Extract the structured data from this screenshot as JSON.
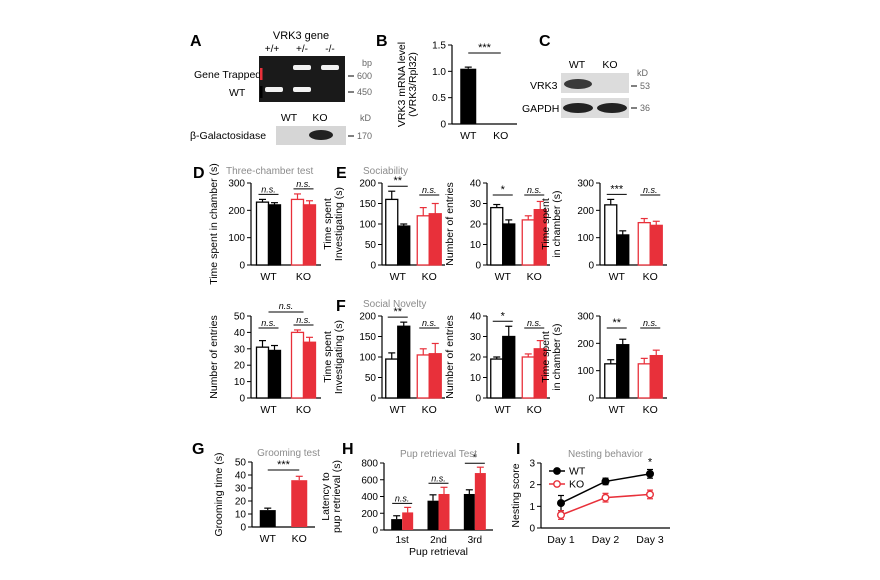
{
  "panels": {
    "A": {
      "letter": "A",
      "gene_title": "VRK3 gene",
      "genotypes": [
        "+/+",
        "+/-",
        "-/-"
      ],
      "bp_unit": "bp",
      "bp_markers": [
        "600",
        "450"
      ],
      "row_labels": [
        "Gene Trapped",
        "WT"
      ],
      "lower_lanes": [
        "WT",
        "KO"
      ],
      "lower_label": "β-Galactosidase",
      "kd_unit": "kD",
      "kd_marker": "170",
      "colors": {
        "trapped": "#e8303a",
        "wt": "#000000",
        "gel": "#1a1a1a",
        "band": "#f2f2f2"
      }
    },
    "B": {
      "letter": "B",
      "sig": "***"
    },
    "C": {
      "letter": "C",
      "lanes": [
        "WT",
        "KO"
      ],
      "rows": [
        "VRK3",
        "GAPDH"
      ],
      "kd_unit": "kD",
      "kd_markers": [
        "53",
        "36"
      ]
    },
    "D": {
      "letter": "D",
      "subtitle": "Three-chamber test"
    },
    "E": {
      "letter": "E",
      "subtitle": "Sociability"
    },
    "F": {
      "letter": "F",
      "subtitle": "Social Novelty"
    },
    "G": {
      "letter": "G"
    },
    "H": {
      "letter": "H"
    },
    "I": {
      "letter": "I"
    }
  },
  "colors": {
    "wt": "#000000",
    "ko": "#e8303a",
    "gray_text": "#8c8c8c"
  },
  "chart_data": [
    {
      "id": "B",
      "type": "bar",
      "title": "",
      "ylabel": [
        "VRK3 mRNA level",
        "(VRK3/Rpl32)"
      ],
      "xlabel": "",
      "categories": [
        "WT",
        "KO"
      ],
      "values": [
        1.05,
        0.0
      ],
      "errors": [
        0.03,
        0.0
      ],
      "ylim": [
        0,
        1.5
      ],
      "yticks": [
        0,
        0.5,
        1.0,
        1.5
      ],
      "ytick_labels": [
        "0",
        "0.5",
        "1.0",
        "1.5"
      ],
      "significance": "***"
    },
    {
      "id": "D1",
      "type": "bar",
      "title": "Three-chamber test",
      "ylabel": [
        "Time spent in chamber (s)"
      ],
      "groups": [
        "WT",
        "KO"
      ],
      "values": [
        [
          230,
          220
        ],
        [
          240,
          220
        ]
      ],
      "errors": [
        [
          10,
          8
        ],
        [
          20,
          15
        ]
      ],
      "ylim": [
        0,
        300
      ],
      "yticks": [
        0,
        100,
        200,
        300
      ],
      "significance": [
        "n.s.",
        "n.s."
      ]
    },
    {
      "id": "D2",
      "type": "bar",
      "title": "",
      "ylabel": [
        "Number of entries"
      ],
      "groups": [
        "WT",
        "KO"
      ],
      "values": [
        [
          31,
          29
        ],
        [
          40,
          34
        ]
      ],
      "errors": [
        [
          4,
          3
        ],
        [
          1.5,
          3
        ]
      ],
      "ylim": [
        0,
        50
      ],
      "yticks": [
        0,
        10,
        20,
        30,
        40,
        50
      ],
      "significance": [
        "n.s.",
        "n.s."
      ],
      "overall": "n.s."
    },
    {
      "id": "E1",
      "type": "bar",
      "title": "Sociability",
      "ylabel": [
        "Time spent",
        "Investigating (s)"
      ],
      "groups": [
        "WT",
        "KO"
      ],
      "values": [
        [
          160,
          95
        ],
        [
          120,
          125
        ]
      ],
      "errors": [
        [
          20,
          5
        ],
        [
          20,
          25
        ]
      ],
      "ylim": [
        0,
        200
      ],
      "yticks": [
        0,
        50,
        100,
        150,
        200
      ],
      "significance": [
        "**",
        "n.s."
      ]
    },
    {
      "id": "E2",
      "type": "bar",
      "title": "",
      "ylabel": [
        "Number of entries"
      ],
      "groups": [
        "WT",
        "KO"
      ],
      "values": [
        [
          28,
          20
        ],
        [
          22,
          27
        ]
      ],
      "errors": [
        [
          1.5,
          2
        ],
        [
          2,
          4
        ]
      ],
      "ylim": [
        0,
        40
      ],
      "yticks": [
        0,
        10,
        20,
        30,
        40
      ],
      "significance": [
        "*",
        "n.s."
      ]
    },
    {
      "id": "E3",
      "type": "bar",
      "title": "",
      "ylabel": [
        "Time spent",
        "in chamber (s)"
      ],
      "groups": [
        "WT",
        "KO"
      ],
      "values": [
        [
          220,
          110
        ],
        [
          155,
          145
        ]
      ],
      "errors": [
        [
          20,
          15
        ],
        [
          15,
          15
        ]
      ],
      "ylim": [
        0,
        300
      ],
      "yticks": [
        0,
        100,
        200,
        300
      ],
      "significance": [
        "***",
        "n.s."
      ]
    },
    {
      "id": "F1",
      "type": "bar",
      "title": "Social Novelty",
      "ylabel": [
        "Time spent",
        "Investigating (s)"
      ],
      "groups": [
        "WT",
        "KO"
      ],
      "values": [
        [
          95,
          175
        ],
        [
          105,
          108
        ]
      ],
      "errors": [
        [
          15,
          10
        ],
        [
          15,
          25
        ]
      ],
      "ylim": [
        0,
        200
      ],
      "yticks": [
        0,
        50,
        100,
        150,
        200
      ],
      "significance": [
        "**",
        "n.s."
      ]
    },
    {
      "id": "F2",
      "type": "bar",
      "title": "",
      "ylabel": [
        "Number of entries"
      ],
      "groups": [
        "WT",
        "KO"
      ],
      "values": [
        [
          19,
          30
        ],
        [
          20,
          24
        ]
      ],
      "errors": [
        [
          1,
          5
        ],
        [
          1.5,
          4
        ]
      ],
      "ylim": [
        0,
        40
      ],
      "yticks": [
        0,
        10,
        20,
        30,
        40
      ],
      "significance": [
        "*",
        "n.s."
      ]
    },
    {
      "id": "F3",
      "type": "bar",
      "title": "",
      "ylabel": [
        "Time spent",
        "in chamber (s)"
      ],
      "groups": [
        "WT",
        "KO"
      ],
      "values": [
        [
          125,
          195
        ],
        [
          125,
          155
        ]
      ],
      "errors": [
        [
          15,
          20
        ],
        [
          20,
          20
        ]
      ],
      "ylim": [
        0,
        300
      ],
      "yticks": [
        0,
        100,
        200,
        300
      ],
      "significance": [
        "**",
        "n.s."
      ]
    },
    {
      "id": "G",
      "type": "bar",
      "title": "Grooming test",
      "ylabel": [
        "Grooming time (s)"
      ],
      "categories": [
        "WT",
        "KO"
      ],
      "values": [
        13,
        36
      ],
      "errors": [
        1.5,
        3
      ],
      "ylim": [
        0,
        50
      ],
      "yticks": [
        0,
        10,
        20,
        30,
        40,
        50
      ],
      "significance": "***"
    },
    {
      "id": "H",
      "type": "bar",
      "title": "Pup retrieval Test",
      "ylabel": [
        "Latency to",
        "pup retrieval (s)"
      ],
      "xlabel": "Pup retrieval",
      "categories": [
        "1st",
        "2nd",
        "3rd"
      ],
      "series": [
        {
          "values": [
            130,
            350,
            430
          ],
          "errors": [
            40,
            70,
            50
          ]
        },
        {
          "values": [
            210,
            430,
            680
          ],
          "errors": [
            60,
            80,
            70
          ]
        }
      ],
      "ylim": [
        0,
        800
      ],
      "yticks": [
        0,
        200,
        400,
        600,
        800
      ],
      "significance": [
        "n.s.",
        "n.s.",
        "*"
      ]
    },
    {
      "id": "I",
      "type": "line",
      "title": "Nesting behavior",
      "ylabel": [
        "Nesting score"
      ],
      "xlabel": "",
      "x": [
        "Day 1",
        "Day 2",
        "Day 3"
      ],
      "series": [
        {
          "name": "WT",
          "values": [
            1.15,
            2.15,
            2.5
          ],
          "errors": [
            0.35,
            0.15,
            0.2
          ]
        },
        {
          "name": "KO",
          "values": [
            0.6,
            1.4,
            1.55
          ],
          "errors": [
            0.2,
            0.2,
            0.2
          ]
        }
      ],
      "ylim": [
        0,
        3
      ],
      "yticks": [
        0,
        1,
        2,
        3
      ],
      "significance": [
        "",
        "",
        "*"
      ],
      "legend": "top-left"
    }
  ]
}
